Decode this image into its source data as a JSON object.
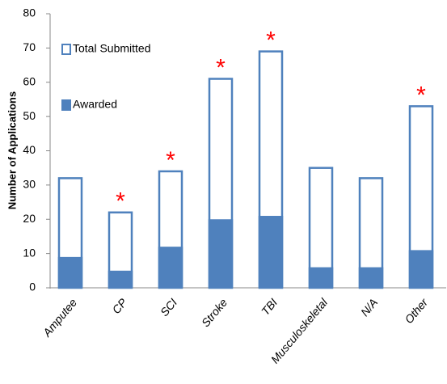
{
  "chart_data": {
    "type": "overlap-bar",
    "y_label": "Number of Applications",
    "categories": [
      "Amputee",
      "CP",
      "SCI",
      "Stroke",
      "TBI",
      "Musculoskeletal",
      "N/A",
      "Other"
    ],
    "series": [
      {
        "name": "Total Submitted",
        "color": "#4f81bd",
        "style": "outline",
        "values": [
          32,
          22,
          34,
          61,
          69,
          35,
          32,
          53
        ]
      },
      {
        "name": "Awarded",
        "color": "#4f81bd",
        "style": "filled",
        "values": [
          9,
          5,
          12,
          20,
          21,
          6,
          6,
          11
        ]
      }
    ],
    "significance": [
      null,
      "*",
      "*",
      "*",
      "*",
      null,
      null,
      "*"
    ],
    "significance_color": "#ff0000",
    "ylim": [
      0,
      80
    ],
    "yticks": [
      0,
      10,
      20,
      30,
      40,
      50,
      60,
      70,
      80
    ],
    "grid": false
  }
}
